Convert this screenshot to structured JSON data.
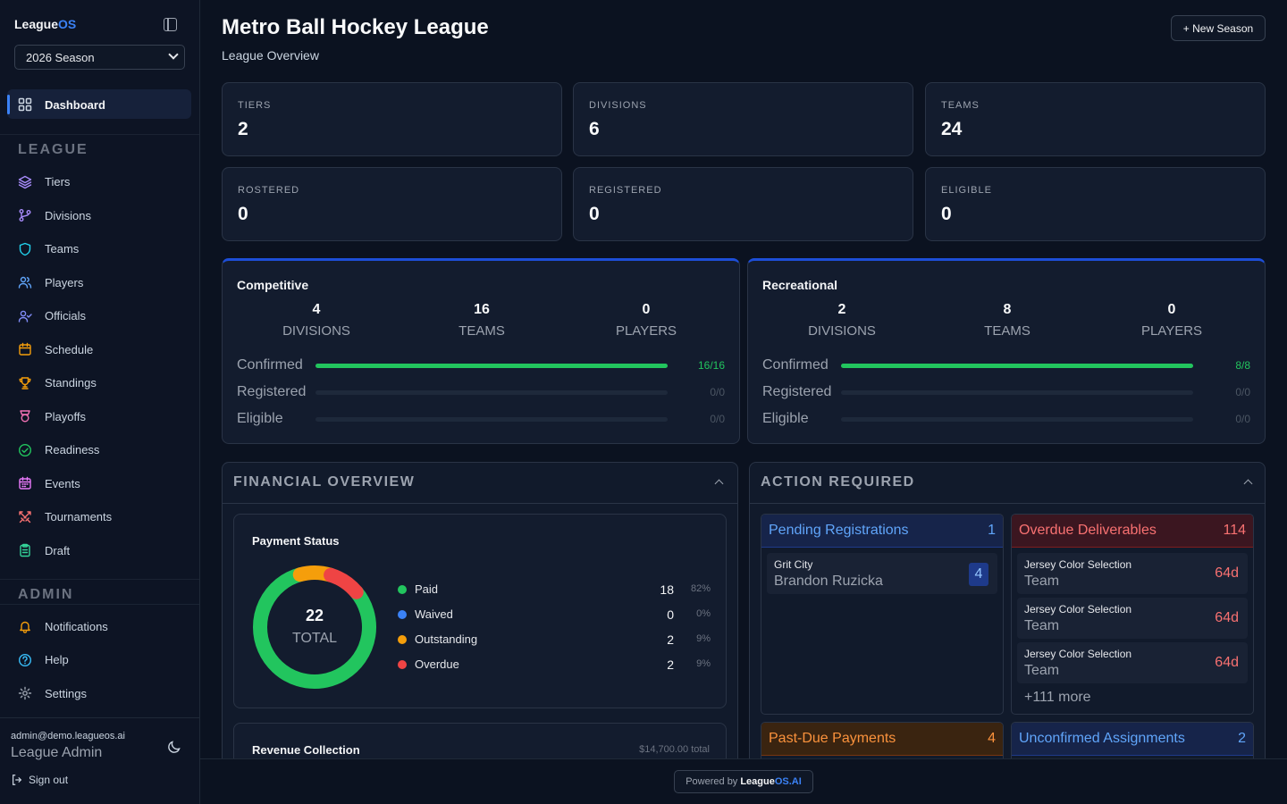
{
  "brand": {
    "name_a": "League",
    "name_b": "OS"
  },
  "sidebar": {
    "season": "2026 Season",
    "dashboard": "Dashboard",
    "league_label": "LEAGUE",
    "admin_label": "ADMIN",
    "league_items": [
      {
        "label": "Tiers",
        "icon": "layers-icon",
        "color": "#a78bfa"
      },
      {
        "label": "Divisions",
        "icon": "git-branch-icon",
        "color": "#a78bfa"
      },
      {
        "label": "Teams",
        "icon": "shield-icon",
        "color": "#22d3ee"
      },
      {
        "label": "Players",
        "icon": "users-icon",
        "color": "#60a5fa"
      },
      {
        "label": "Officials",
        "icon": "user-check-icon",
        "color": "#818cf8"
      },
      {
        "label": "Schedule",
        "icon": "calendar-icon",
        "color": "#f59e0b"
      },
      {
        "label": "Standings",
        "icon": "trophy-icon",
        "color": "#f59e0b"
      },
      {
        "label": "Playoffs",
        "icon": "award-icon",
        "color": "#f472b6"
      },
      {
        "label": "Readiness",
        "icon": "check-circle-icon",
        "color": "#22c55e"
      },
      {
        "label": "Events",
        "icon": "calendar-days-icon",
        "color": "#e879f9"
      },
      {
        "label": "Tournaments",
        "icon": "swords-icon",
        "color": "#f87171"
      },
      {
        "label": "Draft",
        "icon": "clipboard-icon",
        "color": "#34d399"
      }
    ],
    "admin_items": [
      {
        "label": "Notifications",
        "icon": "bell-icon",
        "color": "#f59e0b"
      },
      {
        "label": "Help",
        "icon": "help-circle-icon",
        "color": "#38bdf8"
      },
      {
        "label": "Settings",
        "icon": "gear-icon",
        "color": "#9ca3af"
      }
    ],
    "user_email": "admin@demo.leagueos.ai",
    "user_role": "League Admin",
    "sign_out": "Sign out"
  },
  "header": {
    "title": "Metro Ball Hockey League",
    "subtitle": "League Overview",
    "new_season": "+ New Season"
  },
  "stats": [
    {
      "label": "TIERS",
      "value": "2"
    },
    {
      "label": "DIVISIONS",
      "value": "6"
    },
    {
      "label": "TEAMS",
      "value": "24"
    },
    {
      "label": "ROSTERED",
      "value": "0"
    },
    {
      "label": "REGISTERED",
      "value": "0"
    },
    {
      "label": "ELIGIBLE",
      "value": "0"
    }
  ],
  "tiers": [
    {
      "name": "Competitive",
      "metrics": [
        {
          "n": "4",
          "u": "DIVISIONS"
        },
        {
          "n": "16",
          "u": "TEAMS"
        },
        {
          "n": "0",
          "u": "PLAYERS"
        }
      ],
      "rows": [
        {
          "label": "Confirmed",
          "count": "16/16",
          "fraction": 1
        },
        {
          "label": "Registered",
          "count": "0/0",
          "fraction": 0
        },
        {
          "label": "Eligible",
          "count": "0/0",
          "fraction": 0
        }
      ]
    },
    {
      "name": "Recreational",
      "metrics": [
        {
          "n": "2",
          "u": "DIVISIONS"
        },
        {
          "n": "8",
          "u": "TEAMS"
        },
        {
          "n": "0",
          "u": "PLAYERS"
        }
      ],
      "rows": [
        {
          "label": "Confirmed",
          "count": "8/8",
          "fraction": 1
        },
        {
          "label": "Registered",
          "count": "0/0",
          "fraction": 0
        },
        {
          "label": "Eligible",
          "count": "0/0",
          "fraction": 0
        }
      ]
    }
  ],
  "financial": {
    "title": "FINANCIAL OVERVIEW",
    "payment_title": "Payment Status",
    "total": "22",
    "total_label": "TOTAL",
    "legend": [
      {
        "name": "Paid",
        "count": "18",
        "pct": "82%",
        "value": 18,
        "color": "#22c55e"
      },
      {
        "name": "Waived",
        "count": "0",
        "pct": "0%",
        "value": 0,
        "color": "#3b82f6"
      },
      {
        "name": "Outstanding",
        "count": "2",
        "pct": "9%",
        "value": 2,
        "color": "#f59e0b"
      },
      {
        "name": "Overdue",
        "count": "2",
        "pct": "9%",
        "value": 2,
        "color": "#ef4444"
      }
    ],
    "revenue_title": "Revenue Collection",
    "revenue_total": "$14,700.00 total"
  },
  "actions": {
    "title": "ACTION REQUIRED",
    "pending": {
      "title": "Pending Registrations",
      "count": "1",
      "items": [
        {
          "top": "Grit City",
          "bot": "Brandon Ruzicka",
          "badge": "4"
        }
      ]
    },
    "overdue": {
      "title": "Overdue Deliverables",
      "count": "114",
      "items": [
        {
          "top": "Jersey Color Selection",
          "bot": "Team",
          "right": "64d"
        },
        {
          "top": "Jersey Color Selection",
          "bot": "Team",
          "right": "64d"
        },
        {
          "top": "Jersey Color Selection",
          "bot": "Team",
          "right": "64d"
        }
      ],
      "more": "+111 more"
    },
    "pastdue": {
      "title": "Past-Due Payments",
      "count": "4"
    },
    "unconfirmed": {
      "title": "Unconfirmed Assignments",
      "count": "2"
    }
  },
  "footer": {
    "powered": "Powered by",
    "brand_a": "League",
    "brand_b": "OS.AI"
  }
}
